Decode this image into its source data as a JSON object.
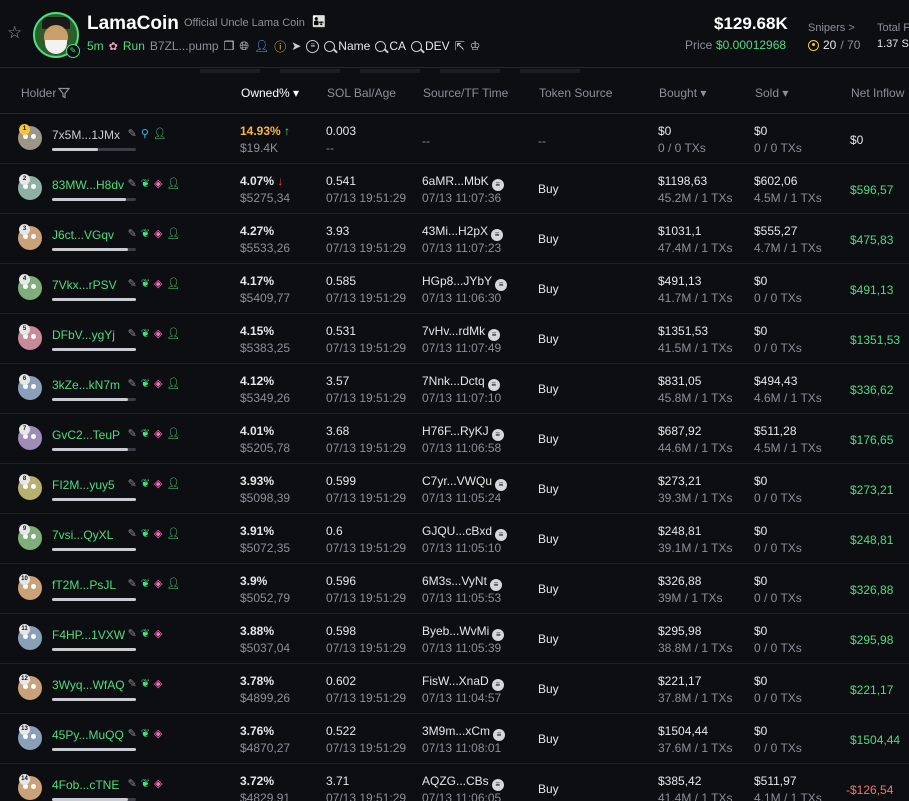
{
  "token": {
    "name": "LamaCoin",
    "subtitle": "Official Uncle Lama Coin",
    "emoji": "👨‍👧",
    "age": "5m",
    "run_label": "Run",
    "ca_short": "B7ZL...pump",
    "links": [
      "Name",
      "CA",
      "DEV"
    ]
  },
  "stats": {
    "market_cap": "$129.68K",
    "price_label": "Price",
    "price": "$0.00012968",
    "snipers_label": "Snipers >",
    "snipers_count": "20",
    "snipers_total": "/ 70",
    "total_label": "Total F",
    "total_value": "1.37 S"
  },
  "columns": {
    "holder": "Holder",
    "owned": "Owned% ▾",
    "sol_bal": "SOL Bal/Age",
    "source": "Source/TF Time",
    "token_source": "Token Source",
    "bought": "Bought ▾",
    "sold": "Sold ▾",
    "net_inflow": "Net Inflow"
  },
  "rows": [
    {
      "rank": "1",
      "addr": "7x5M...1JMx",
      "icons": [
        "pen",
        "fish",
        "user"
      ],
      "pct": "14.93%",
      "trend": "↑",
      "usd": "$19.4K",
      "sol": "0.003",
      "age": "--",
      "src": "--",
      "src_time": "",
      "token_src": "--",
      "bought": "$0",
      "bought_tx": "0 / 0 TXs",
      "sold": "$0",
      "sold_tx": "0 / 0 TXs",
      "net": "$0",
      "net_type": "neutral",
      "fill": 0.55,
      "avatar": "#9c9688"
    },
    {
      "rank": "2",
      "addr": "83MW...H8dv",
      "icons": [
        "pen",
        "leaf",
        "stack",
        "user"
      ],
      "pct": "4.07%",
      "trend": "↓",
      "usd": "$5275,34",
      "sol": "0.541",
      "age": "07/13 19:51:29",
      "src": "6aMR...MbK",
      "src_time": "07/13 11:07:36",
      "token_src": "Buy",
      "bought": "$1198,63",
      "bought_tx": "45.2M / 1 TXs",
      "sold": "$602,06",
      "sold_tx": "4.5M / 1 TXs",
      "net": "$596,57",
      "net_type": "pos",
      "fill": 0.88,
      "avatar": "#8fb0a4"
    },
    {
      "rank": "3",
      "addr": "J6ct...VGqv",
      "icons": [
        "pen",
        "leaf",
        "stack",
        "user"
      ],
      "pct": "4.27%",
      "trend": "",
      "usd": "$5533,26",
      "sol": "3.93",
      "age": "07/13 19:51:29",
      "src": "43Mi...H2pX",
      "src_time": "07/13 11:07:23",
      "token_src": "Buy",
      "bought": "$1031,1",
      "bought_tx": "47.4M / 1 TXs",
      "sold": "$555,27",
      "sold_tx": "4.7M / 1 TXs",
      "net": "$475,83",
      "net_type": "pos",
      "fill": 0.9,
      "avatar": "#c9a27a"
    },
    {
      "rank": "4",
      "addr": "7Vkx...rPSV",
      "icons": [
        "pen",
        "leaf",
        "stack",
        "user"
      ],
      "pct": "4.17%",
      "trend": "",
      "usd": "$5409,77",
      "sol": "0.585",
      "age": "07/13 19:51:29",
      "src": "HGp8...JYbY",
      "src_time": "07/13 11:06:30",
      "token_src": "Buy",
      "bought": "$491,13",
      "bought_tx": "41.7M / 1 TXs",
      "sold": "$0",
      "sold_tx": "0 / 0 TXs",
      "net": "$491,13",
      "net_type": "pos",
      "fill": 1.0,
      "avatar": "#7fae7a"
    },
    {
      "rank": "5",
      "addr": "DFbV...ygYj",
      "icons": [
        "pen",
        "leaf",
        "stack",
        "user"
      ],
      "pct": "4.15%",
      "trend": "",
      "usd": "$5383,25",
      "sol": "0.531",
      "age": "07/13 19:51:29",
      "src": "7vHv...rdMk",
      "src_time": "07/13 11:07:49",
      "token_src": "Buy",
      "bought": "$1351,53",
      "bought_tx": "41.5M / 1 TXs",
      "sold": "$0",
      "sold_tx": "0 / 0 TXs",
      "net": "$1351,53",
      "net_type": "pos",
      "fill": 1.0,
      "avatar": "#c98a9a"
    },
    {
      "rank": "6",
      "addr": "3kZe...kN7m",
      "icons": [
        "pen",
        "leaf",
        "stack",
        "user"
      ],
      "pct": "4.12%",
      "trend": "",
      "usd": "$5349,26",
      "sol": "3.57",
      "age": "07/13 19:51:29",
      "src": "7Nnk...Dctq",
      "src_time": "07/13 11:07:10",
      "token_src": "Buy",
      "bought": "$831,05",
      "bought_tx": "45.8M / 1 TXs",
      "sold": "$494,43",
      "sold_tx": "4.6M / 1 TXs",
      "net": "$336,62",
      "net_type": "pos",
      "fill": 0.9,
      "avatar": "#8aa0b8"
    },
    {
      "rank": "7",
      "addr": "GvC2...TeuP",
      "icons": [
        "pen",
        "leaf",
        "stack",
        "user"
      ],
      "pct": "4.01%",
      "trend": "",
      "usd": "$5205,78",
      "sol": "3.68",
      "age": "07/13 19:51:29",
      "src": "H76F...RyKJ",
      "src_time": "07/13 11:06:58",
      "token_src": "Buy",
      "bought": "$687,92",
      "bought_tx": "44.6M / 1 TXs",
      "sold": "$511,28",
      "sold_tx": "4.5M / 1 TXs",
      "net": "$176,65",
      "net_type": "pos",
      "fill": 0.9,
      "avatar": "#a08cb8"
    },
    {
      "rank": "8",
      "addr": "FI2M...yuy5",
      "icons": [
        "pen",
        "leaf",
        "stack",
        "user"
      ],
      "pct": "3.93%",
      "trend": "",
      "usd": "$5098,39",
      "sol": "0.599",
      "age": "07/13 19:51:29",
      "src": "C7yr...VWQu",
      "src_time": "07/13 11:05:24",
      "token_src": "Buy",
      "bought": "$273,21",
      "bought_tx": "39.3M / 1 TXs",
      "sold": "$0",
      "sold_tx": "0 / 0 TXs",
      "net": "$273,21",
      "net_type": "pos",
      "fill": 1.0,
      "avatar": "#b8b070"
    },
    {
      "rank": "9",
      "addr": "7vsi...QyXL",
      "icons": [
        "pen",
        "leaf",
        "stack",
        "user"
      ],
      "pct": "3.91%",
      "trend": "",
      "usd": "$5072,35",
      "sol": "0.6",
      "age": "07/13 19:51:29",
      "src": "GJQU...cBxd",
      "src_time": "07/13 11:05:10",
      "token_src": "Buy",
      "bought": "$248,81",
      "bought_tx": "39.1M / 1 TXs",
      "sold": "$0",
      "sold_tx": "0 / 0 TXs",
      "net": "$248,81",
      "net_type": "pos",
      "fill": 1.0,
      "avatar": "#7fae7a"
    },
    {
      "rank": "10",
      "addr": "fT2M...PsJL",
      "icons": [
        "pen",
        "leaf",
        "stack",
        "user"
      ],
      "pct": "3.9%",
      "trend": "",
      "usd": "$5052,79",
      "sol": "0.596",
      "age": "07/13 19:51:29",
      "src": "6M3s...VyNt",
      "src_time": "07/13 11:05:53",
      "token_src": "Buy",
      "bought": "$326,88",
      "bought_tx": "39M / 1 TXs",
      "sold": "$0",
      "sold_tx": "0 / 0 TXs",
      "net": "$326,88",
      "net_type": "pos",
      "fill": 1.0,
      "avatar": "#c9a27a"
    },
    {
      "rank": "11",
      "addr": "F4HP...1VXW",
      "icons": [
        "pen",
        "leaf",
        "stack"
      ],
      "pct": "3.88%",
      "trend": "",
      "usd": "$5037,04",
      "sol": "0.598",
      "age": "07/13 19:51:29",
      "src": "Byeb...WvMi",
      "src_time": "07/13 11:05:39",
      "token_src": "Buy",
      "bought": "$295,98",
      "bought_tx": "38.8M / 1 TXs",
      "sold": "$0",
      "sold_tx": "0 / 0 TXs",
      "net": "$295,98",
      "net_type": "pos",
      "fill": 1.0,
      "avatar": "#8aa0b8"
    },
    {
      "rank": "12",
      "addr": "3Wyq...WfAQ",
      "icons": [
        "pen",
        "leaf",
        "stack"
      ],
      "pct": "3.78%",
      "trend": "",
      "usd": "$4899,26",
      "sol": "0.602",
      "age": "07/13 19:51:29",
      "src": "FisW...XnaD",
      "src_time": "07/13 11:04:57",
      "token_src": "Buy",
      "bought": "$221,17",
      "bought_tx": "37.8M / 1 TXs",
      "sold": "$0",
      "sold_tx": "0 / 0 TXs",
      "net": "$221,17",
      "net_type": "pos",
      "fill": 1.0,
      "avatar": "#c9a27a"
    },
    {
      "rank": "13",
      "addr": "45Py...MuQQ",
      "icons": [
        "pen",
        "leaf",
        "stack"
      ],
      "pct": "3.76%",
      "trend": "",
      "usd": "$4870,27",
      "sol": "0.522",
      "age": "07/13 19:51:29",
      "src": "3M9m...xCm",
      "src_time": "07/13 11:08:01",
      "token_src": "Buy",
      "bought": "$1504,44",
      "bought_tx": "37.6M / 1 TXs",
      "sold": "$0",
      "sold_tx": "0 / 0 TXs",
      "net": "$1504,44",
      "net_type": "pos",
      "fill": 1.0,
      "avatar": "#8aa0b8"
    },
    {
      "rank": "14",
      "addr": "4Fob...cTNE",
      "icons": [
        "pen",
        "leaf",
        "stack"
      ],
      "pct": "3.72%",
      "trend": "",
      "usd": "$4829,91",
      "sol": "3.71",
      "age": "07/13 19:51:29",
      "src": "AQZG...CBs",
      "src_time": "07/13 11:06:05",
      "token_src": "Buy",
      "bought": "$385,42",
      "bought_tx": "41.4M / 1 TXs",
      "sold": "$511,97",
      "sold_tx": "4.1M / 1 TXs",
      "net": "-$126,54",
      "net_type": "neg",
      "fill": 0.9,
      "avatar": "#c9a27a"
    }
  ],
  "colors": {
    "accent": "#4ade80",
    "negative": "#f87171",
    "warning": "#f5b642",
    "background": "#0d0e12"
  }
}
